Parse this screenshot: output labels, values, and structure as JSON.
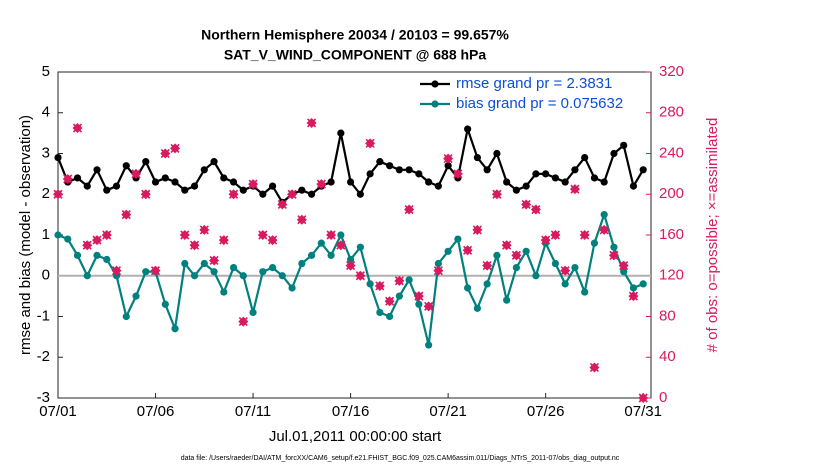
{
  "chart_data": {
    "type": "line",
    "title": "Northern Hemisphere 20034 / 20103 = 99.657%",
    "subtitle": "SAT_V_WIND_COMPONENT @ 688 hPa",
    "xlabel": "Jul.01,2011 00:00:00 start",
    "ylabel": "rmse and bias (model - observation)",
    "y2label": "# of obs: o=possible; ×=assimilated",
    "footer": "data file: /Users/raeder/DAI/ATM_forcXX/CAM6_setup/f.e21.FHIST_BGC.f09_025.CAM6assim.011/Diags_NTrS_2011-07/obs_diag_output.nc",
    "x": [
      0,
      0.5,
      1,
      1.5,
      2,
      2.5,
      3,
      3.5,
      4,
      4.5,
      5,
      5.5,
      6,
      6.5,
      7,
      7.5,
      8,
      8.5,
      9,
      9.5,
      10,
      10.5,
      11,
      11.5,
      12,
      12.5,
      13,
      13.5,
      14,
      14.5,
      15,
      15.5,
      16,
      16.5,
      17,
      17.5,
      18,
      18.5,
      19,
      19.5,
      20,
      20.5,
      21,
      21.5,
      22,
      22.5,
      23,
      23.5,
      24,
      24.5,
      25,
      25.5,
      26,
      26.5,
      27,
      27.5,
      28,
      28.5,
      29,
      29.5,
      30
    ],
    "xlim": [
      0,
      30.4
    ],
    "xticks": [
      {
        "value": 0,
        "label": "07/01"
      },
      {
        "value": 5,
        "label": "07/06"
      },
      {
        "value": 10,
        "label": "07/11"
      },
      {
        "value": 15,
        "label": "07/16"
      },
      {
        "value": 20,
        "label": "07/21"
      },
      {
        "value": 25,
        "label": "07/26"
      },
      {
        "value": 30,
        "label": "07/31"
      }
    ],
    "ylim": [
      -3,
      5
    ],
    "yticks": [
      -3,
      -2,
      -1,
      0,
      1,
      2,
      3,
      4,
      5
    ],
    "y2lim": [
      0,
      320
    ],
    "y2ticks": [
      0,
      40,
      80,
      120,
      160,
      200,
      240,
      280,
      320
    ],
    "legend": "upper right",
    "series": [
      {
        "name": "rmse grand pr = 2.3831",
        "color": "#000000",
        "values": [
          2.9,
          2.3,
          2.4,
          2.2,
          2.6,
          2.1,
          2.2,
          2.7,
          2.4,
          2.8,
          2.3,
          2.4,
          2.3,
          2.1,
          2.2,
          2.6,
          2.8,
          2.4,
          2.3,
          2.1,
          2.2,
          2.0,
          2.2,
          1.8,
          2.0,
          2.1,
          2.0,
          2.2,
          2.3,
          3.5,
          2.3,
          2.0,
          2.5,
          2.8,
          2.7,
          2.6,
          2.6,
          2.5,
          2.3,
          2.2,
          2.7,
          2.4,
          3.6,
          2.9,
          2.6,
          3.0,
          2.3,
          2.1,
          2.2,
          2.5,
          2.5,
          2.4,
          2.3,
          2.6,
          2.9,
          2.4,
          2.3,
          3.0,
          3.2,
          2.2,
          2.6
        ]
      },
      {
        "name": "bias grand pr = 0.075632",
        "color": "#00807f",
        "values": [
          1.0,
          0.9,
          0.5,
          0.0,
          0.5,
          0.4,
          0.0,
          -1.0,
          -0.5,
          0.1,
          0.1,
          -0.7,
          -1.3,
          0.3,
          0.0,
          0.3,
          0.1,
          -0.4,
          0.2,
          0.0,
          -0.9,
          0.1,
          0.2,
          0.0,
          -0.3,
          0.3,
          0.5,
          0.8,
          0.5,
          1.0,
          0.4,
          0.7,
          -0.2,
          -0.9,
          -1.0,
          -0.5,
          -0.1,
          -0.7,
          -1.7,
          0.3,
          0.6,
          0.9,
          -0.3,
          -0.8,
          -0.2,
          0.5,
          -0.6,
          0.2,
          0.6,
          0.0,
          0.8,
          0.3,
          -0.2,
          0.2,
          -0.4,
          0.8,
          1.5,
          0.7,
          0.1,
          -0.3,
          -0.2
        ]
      },
      {
        "marker": "o",
        "axis": "y2",
        "color": "#d81b60",
        "values": [
          200,
          215,
          265,
          150,
          155,
          160,
          125,
          180,
          220,
          200,
          125,
          240,
          245,
          160,
          150,
          165,
          135,
          155,
          200,
          75,
          210,
          160,
          155,
          190,
          200,
          175,
          270,
          210,
          160,
          150,
          130,
          120,
          250,
          110,
          95,
          115,
          185,
          100,
          90,
          125,
          235,
          220,
          145,
          165,
          130,
          200,
          150,
          140,
          190,
          185,
          155,
          160,
          125,
          205,
          160,
          30,
          165,
          140,
          130,
          100,
          0
        ]
      },
      {
        "marker": "x",
        "axis": "y2",
        "color": "#d81b60",
        "values": [
          200,
          215,
          265,
          150,
          155,
          160,
          125,
          180,
          220,
          200,
          125,
          240,
          245,
          160,
          150,
          165,
          135,
          155,
          200,
          75,
          210,
          160,
          155,
          190,
          200,
          175,
          270,
          210,
          160,
          150,
          130,
          120,
          250,
          110,
          95,
          115,
          185,
          100,
          90,
          125,
          235,
          220,
          145,
          165,
          130,
          200,
          150,
          140,
          190,
          185,
          155,
          160,
          125,
          205,
          160,
          30,
          165,
          140,
          130,
          100,
          0
        ]
      }
    ]
  }
}
